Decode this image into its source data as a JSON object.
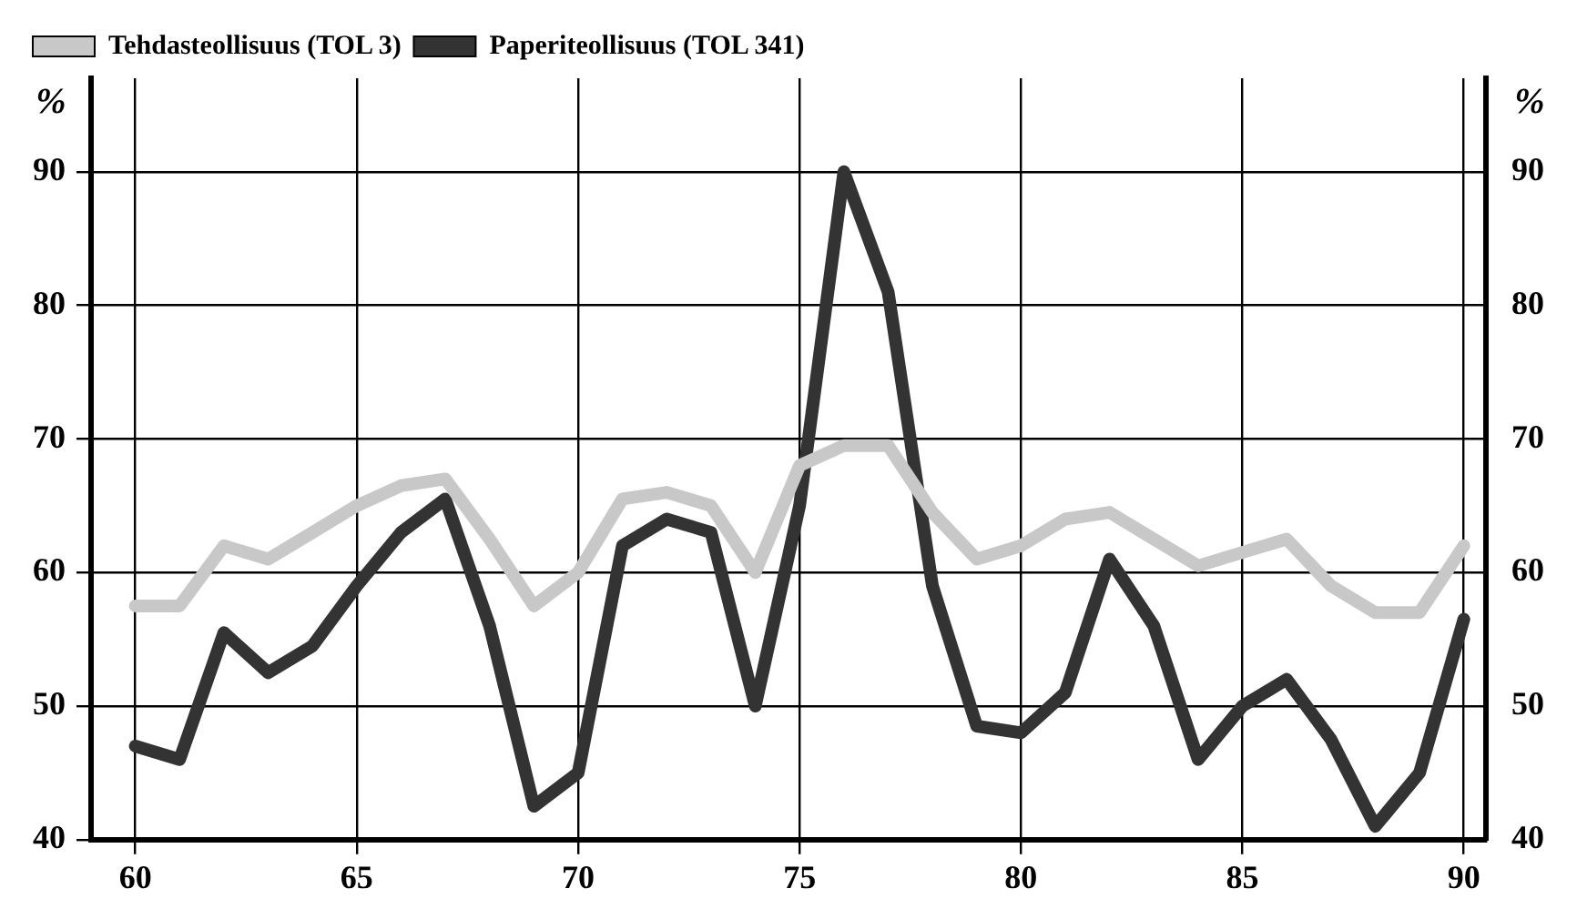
{
  "chart_data": {
    "type": "line",
    "ylabel": "%",
    "y2label": "%",
    "x": [
      60,
      61,
      62,
      63,
      64,
      65,
      66,
      67,
      68,
      69,
      70,
      71,
      72,
      73,
      74,
      75,
      76,
      77,
      78,
      79,
      80,
      81,
      82,
      83,
      84,
      85,
      86,
      87,
      88,
      89,
      90
    ],
    "series": [
      {
        "name": "Tehdasteollisuus (TOL 3)",
        "color": "#c8c8c8",
        "values": [
          57.5,
          57.5,
          62,
          61,
          63,
          65,
          66.5,
          67,
          62.5,
          57.5,
          60,
          65.5,
          66,
          65,
          60,
          68,
          69.5,
          69.5,
          64.5,
          61,
          62,
          64,
          64.5,
          62.5,
          60.5,
          61.5,
          62.5,
          59,
          57,
          57,
          62
        ]
      },
      {
        "name": "Paperiteollisuus (TOL 341)",
        "color": "#333333",
        "values": [
          47,
          46,
          55.5,
          52.5,
          54.5,
          59,
          63,
          65.5,
          56,
          42.5,
          45,
          62,
          64,
          63,
          50,
          65,
          90,
          81,
          59,
          48.5,
          48,
          51,
          61,
          56,
          46,
          50,
          52,
          47.5,
          41,
          45,
          56.5
        ]
      }
    ],
    "xlim": [
      59,
      90.5
    ],
    "xticks": [
      60,
      65,
      70,
      75,
      80,
      85,
      90
    ],
    "ylim": [
      40,
      97
    ],
    "yticks": [
      40,
      50,
      60,
      70,
      80,
      90
    ],
    "y2lim": [
      40,
      97
    ],
    "y2ticks": [
      40,
      50,
      60,
      70,
      80,
      90
    ],
    "grid": true,
    "legend": "top left",
    "marker": "none",
    "line_style": "solid"
  }
}
